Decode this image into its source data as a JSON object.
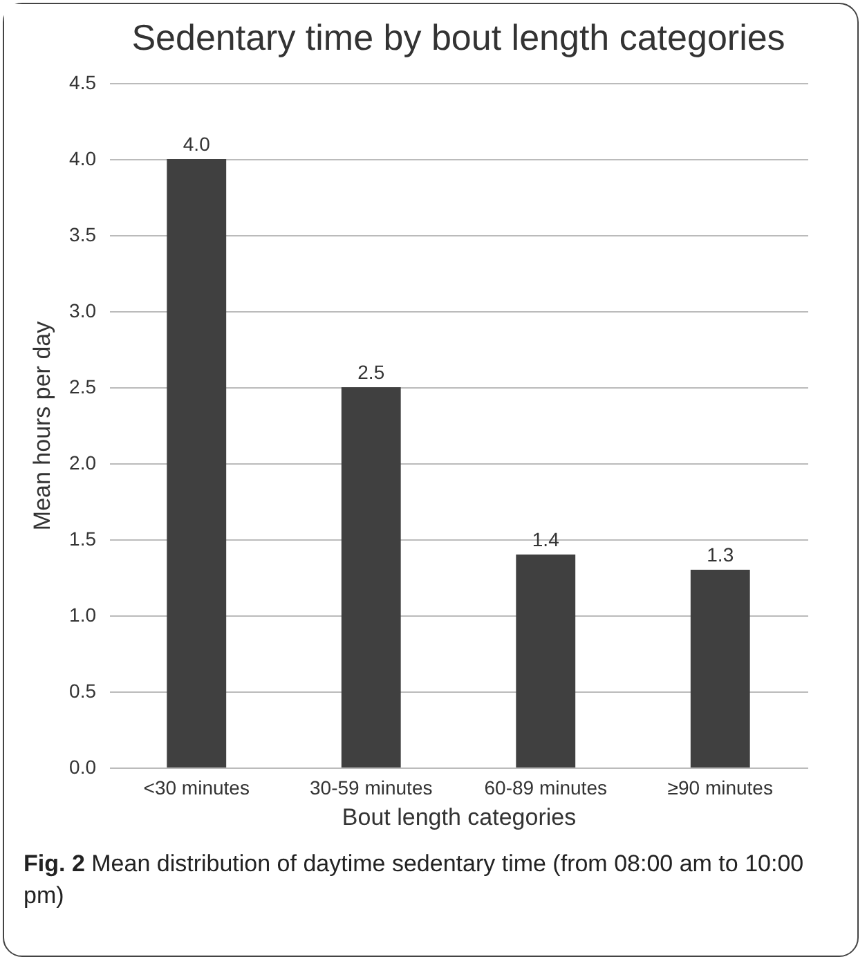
{
  "chart_data": {
    "type": "bar",
    "title": "Sedentary time by bout length categories",
    "xlabel": "Bout length categories",
    "ylabel": "Mean hours per day",
    "categories": [
      "<30 minutes",
      "30-59 minutes",
      "60-89 minutes",
      "≥90 minutes"
    ],
    "values": [
      4.0,
      2.5,
      1.4,
      1.3
    ],
    "color": "#404040",
    "ylim": [
      0,
      4.5
    ],
    "yticks": [
      {
        "value": 0,
        "label": "0.0"
      },
      {
        "value": 0.5,
        "label": "0.5"
      },
      {
        "value": 1,
        "label": "1.0"
      },
      {
        "value": 1.5,
        "label": "1.5"
      },
      {
        "value": 2,
        "label": "2.0"
      },
      {
        "value": 2.5,
        "label": "2.5"
      },
      {
        "value": 3,
        "label": "3.0"
      },
      {
        "value": 3.5,
        "label": "3.5"
      },
      {
        "value": 4,
        "label": "4.0"
      },
      {
        "value": 4.5,
        "label": "4.5"
      }
    ],
    "grid": "y",
    "value_labels": [
      "4.0",
      "2.5",
      "1.4",
      "1.3"
    ],
    "annotations": [
      "Fig. 2 Mean distribution of daytime sedentary time (from 08:00 am to 10:00 pm)"
    ]
  }
}
